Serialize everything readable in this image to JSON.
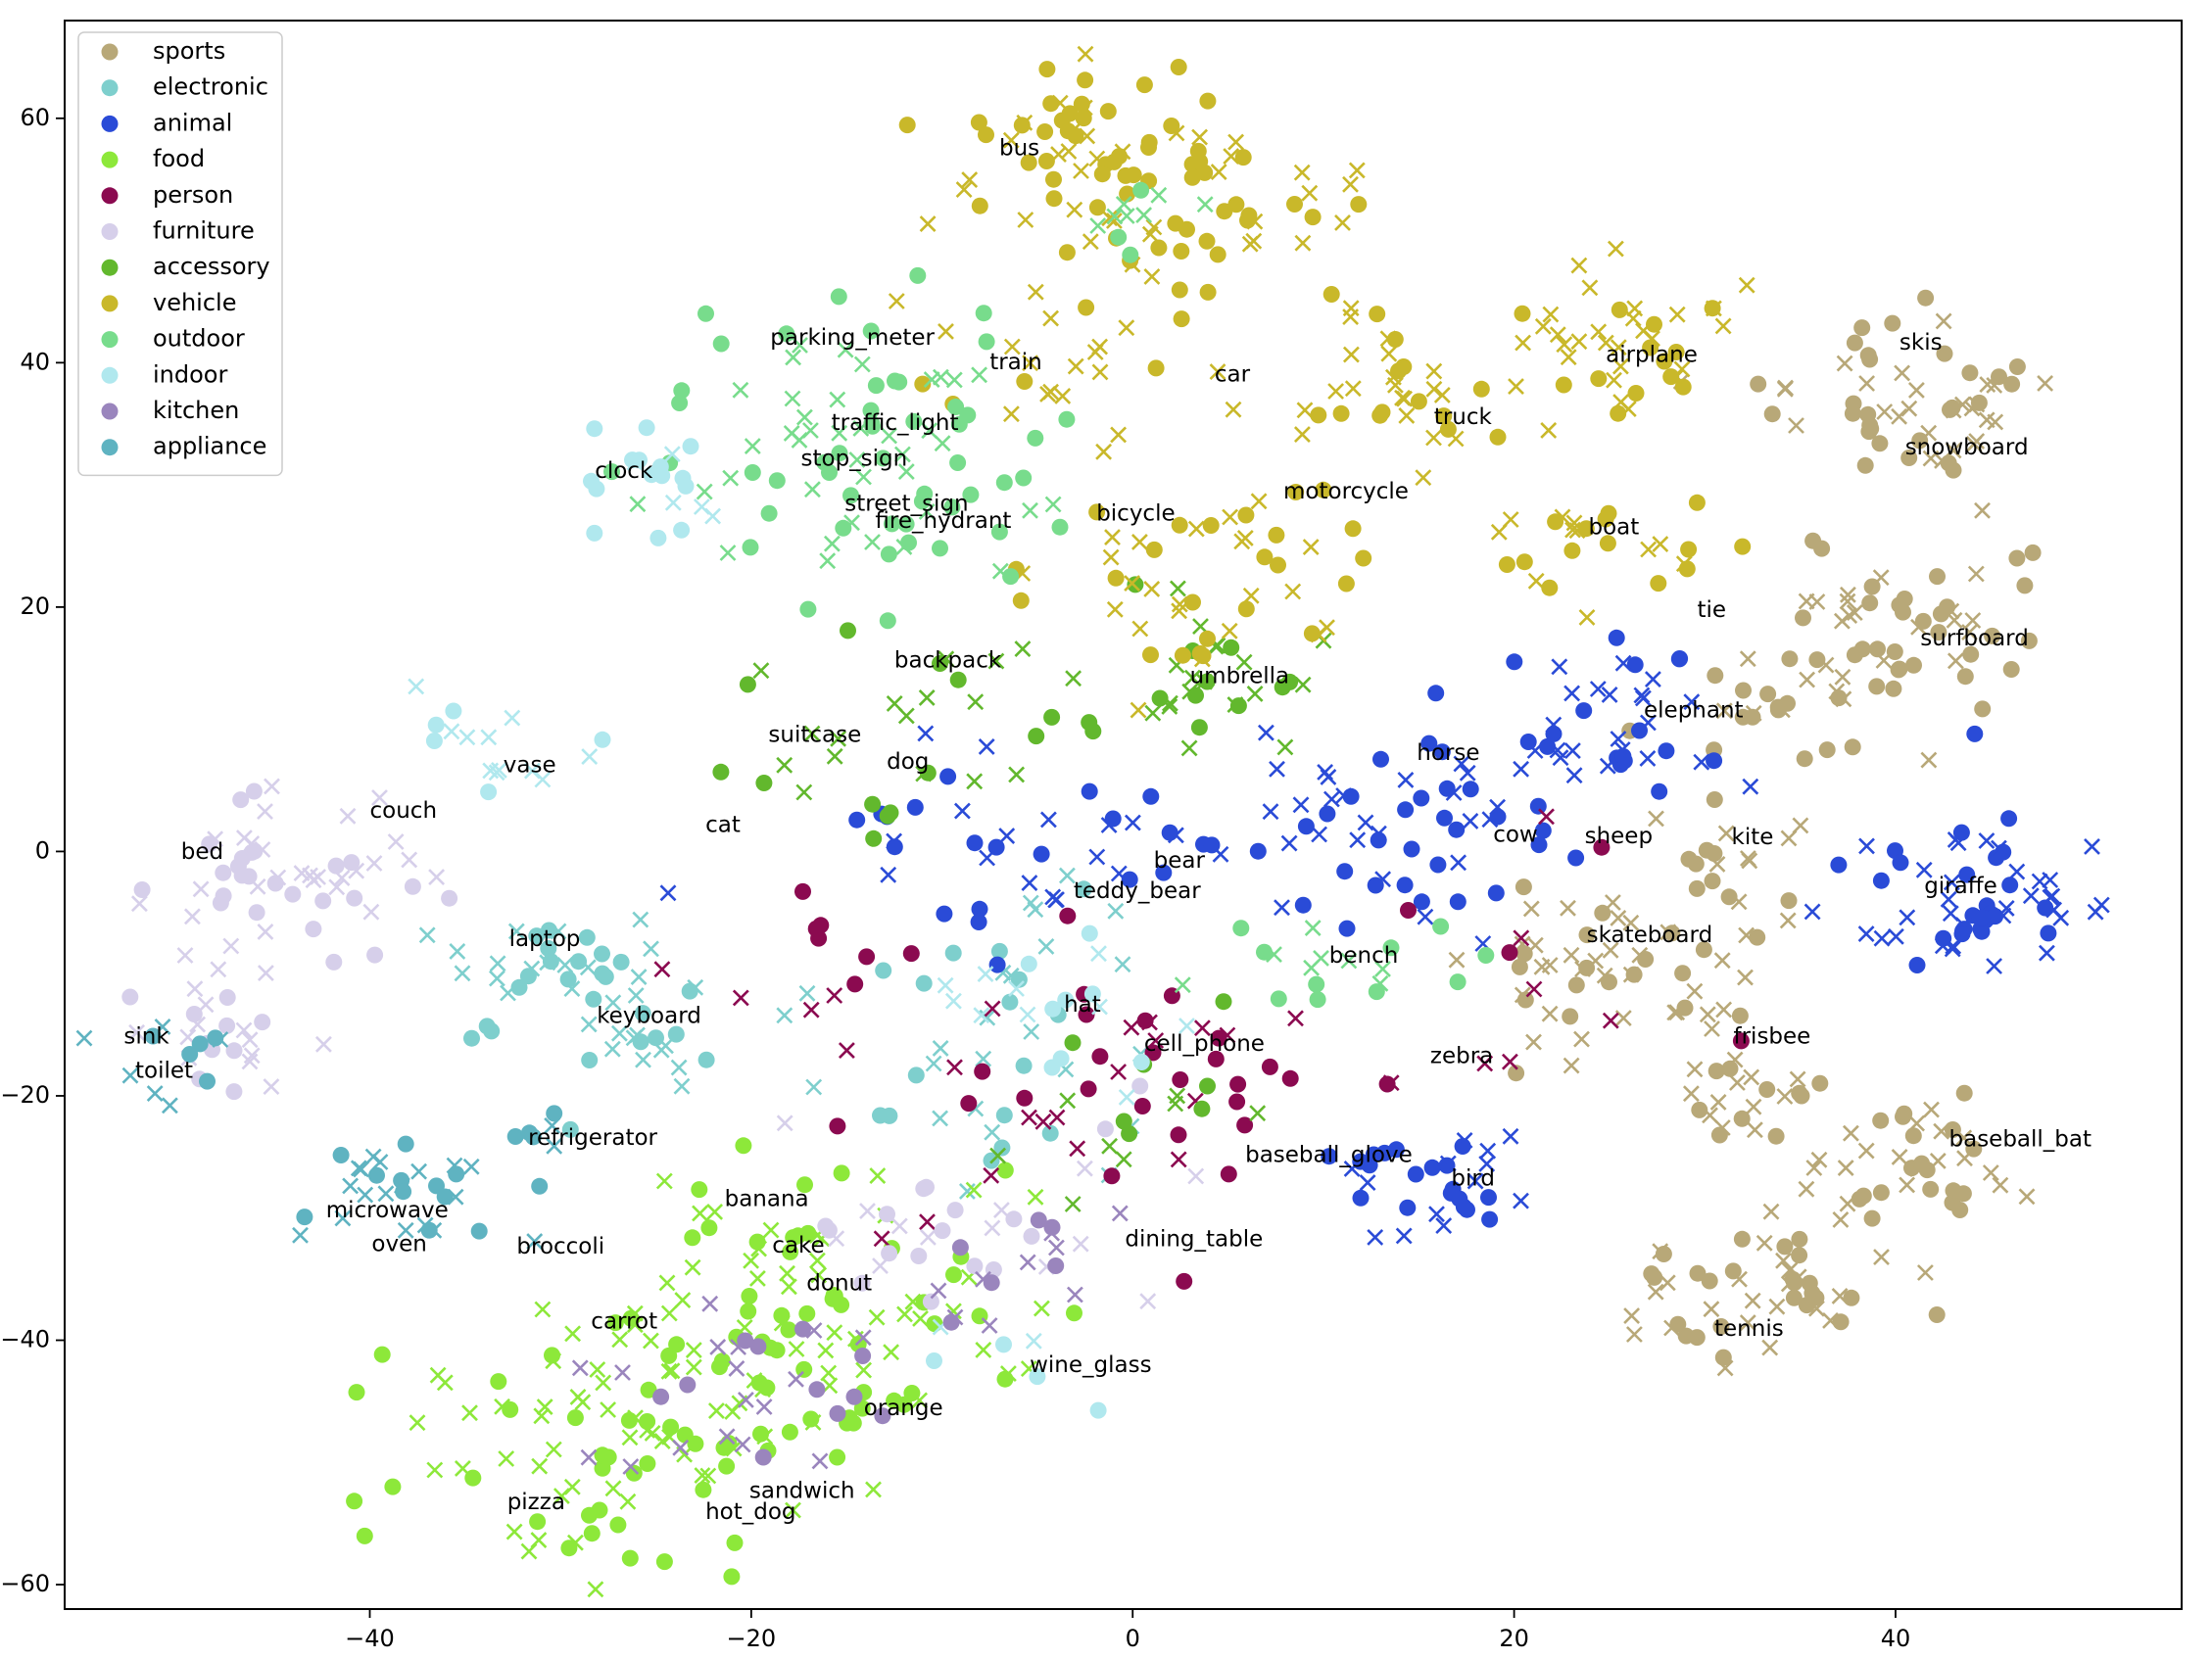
{
  "chart_data": {
    "type": "scatter",
    "title": "",
    "xlabel": "",
    "ylabel": "",
    "xlim": [
      -56,
      55
    ],
    "ylim": [
      -62,
      68
    ],
    "xticks": [
      -40,
      -20,
      0,
      20,
      40
    ],
    "yticks": [
      -60,
      -40,
      -20,
      0,
      20,
      40,
      60
    ],
    "xtick_labels": [
      "−40",
      "−20",
      "0",
      "20",
      "40"
    ],
    "ytick_labels": [
      "−60",
      "−40",
      "−20",
      "0",
      "20",
      "40",
      "60"
    ],
    "grid": false,
    "legend_position": "upper-left",
    "marker_legend": {
      "circle": "dot",
      "x": "cross"
    },
    "series": [
      {
        "name": "sports",
        "color": "#b8a878",
        "clusters": [
          {
            "x": 41,
            "y": 37,
            "spread": 3.5,
            "n": 55
          },
          {
            "x": 40,
            "y": 19,
            "spread": 3.5,
            "n": 50
          },
          {
            "x": 34,
            "y": 12,
            "spread": 3,
            "n": 25
          },
          {
            "x": 32,
            "y": 0,
            "spread": 2,
            "n": 14
          },
          {
            "x": 26,
            "y": -9,
            "spread": 4,
            "n": 55
          },
          {
            "x": 33,
            "y": -20,
            "spread": 2.5,
            "n": 22
          },
          {
            "x": 41,
            "y": -26,
            "spread": 3,
            "n": 38
          },
          {
            "x": 33,
            "y": -36,
            "spread": 3.5,
            "n": 50
          }
        ]
      },
      {
        "name": "electronic",
        "color": "#7ecfcd",
        "clusters": [
          {
            "x": -30,
            "y": -10,
            "spread": 3,
            "n": 38
          },
          {
            "x": -25,
            "y": -16,
            "spread": 2.5,
            "n": 16
          },
          {
            "x": -8,
            "y": -16,
            "spread": 5,
            "n": 30
          },
          {
            "x": -4,
            "y": -6,
            "spread": 3,
            "n": 10
          }
        ]
      },
      {
        "name": "animal",
        "color": "#2a4bd7",
        "clusters": [
          {
            "x": 14,
            "y": 3,
            "spread": 4.5,
            "n": 60
          },
          {
            "x": 26,
            "y": 10,
            "spread": 3,
            "n": 35
          },
          {
            "x": 45,
            "y": -4,
            "spread": 3.5,
            "n": 60
          },
          {
            "x": 16,
            "y": -27,
            "spread": 2.5,
            "n": 32
          },
          {
            "x": -8,
            "y": 1,
            "spread": 5,
            "n": 30
          },
          {
            "x": 2,
            "y": 0,
            "spread": 2,
            "n": 10
          }
        ]
      },
      {
        "name": "food",
        "color": "#8de83a",
        "clusters": [
          {
            "x": -27,
            "y": -48,
            "spread": 6,
            "n": 110
          },
          {
            "x": -17,
            "y": -35,
            "spread": 5,
            "n": 60
          },
          {
            "x": -13,
            "y": -44,
            "spread": 3,
            "n": 20
          }
        ]
      },
      {
        "name": "person",
        "color": "#8b0a50",
        "clusters": [
          {
            "x": 0,
            "y": -18,
            "spread": 6,
            "n": 45
          },
          {
            "x": -18,
            "y": -10,
            "spread": 3,
            "n": 12
          },
          {
            "x": 20,
            "y": -8,
            "spread": 6,
            "n": 10
          }
        ]
      },
      {
        "name": "furniture",
        "color": "#d6cfea",
        "clusters": [
          {
            "x": -44,
            "y": -2,
            "spread": 4,
            "n": 55
          },
          {
            "x": -48,
            "y": -16,
            "spread": 2.5,
            "n": 22
          },
          {
            "x": -8,
            "y": -30,
            "spread": 5,
            "n": 30
          }
        ]
      },
      {
        "name": "accessory",
        "color": "#62b82d",
        "clusters": [
          {
            "x": 3,
            "y": 14,
            "spread": 3,
            "n": 30
          },
          {
            "x": -11,
            "y": 10,
            "spread": 5,
            "n": 30
          },
          {
            "x": 2,
            "y": -20,
            "spread": 3,
            "n": 15
          }
        ]
      },
      {
        "name": "vehicle",
        "color": "#c9b82a",
        "clusters": [
          {
            "x": -3,
            "y": 57,
            "spread": 4,
            "n": 60
          },
          {
            "x": 5,
            "y": 52,
            "spread": 4,
            "n": 40
          },
          {
            "x": 25,
            "y": 42,
            "spread": 3,
            "n": 40
          },
          {
            "x": 13,
            "y": 37,
            "spread": 4,
            "n": 35
          },
          {
            "x": 4,
            "y": 25,
            "spread": 5,
            "n": 50
          },
          {
            "x": 24,
            "y": 24,
            "spread": 3,
            "n": 25
          },
          {
            "x": -5,
            "y": 40,
            "spread": 3.5,
            "n": 20
          }
        ]
      },
      {
        "name": "outdoor",
        "color": "#78dc8c",
        "clusters": [
          {
            "x": -15,
            "y": 33,
            "spread": 6,
            "n": 90
          },
          {
            "x": 0,
            "y": 52,
            "spread": 2,
            "n": 10
          },
          {
            "x": 10,
            "y": -9,
            "spread": 3,
            "n": 18
          }
        ]
      },
      {
        "name": "indoor",
        "color": "#b0e8ee",
        "clusters": [
          {
            "x": -26,
            "y": 31,
            "spread": 2.5,
            "n": 20
          },
          {
            "x": -33,
            "y": 8,
            "spread": 2.5,
            "n": 16
          },
          {
            "x": -4,
            "y": -12,
            "spread": 4,
            "n": 18
          },
          {
            "x": -7,
            "y": -42,
            "spread": 2,
            "n": 6
          }
        ]
      },
      {
        "name": "kitchen",
        "color": "#9a85bd",
        "clusters": [
          {
            "x": -20,
            "y": -45,
            "spread": 5,
            "n": 28
          },
          {
            "x": -7,
            "y": -34,
            "spread": 3,
            "n": 15
          }
        ]
      },
      {
        "name": "appliance",
        "color": "#5fb3c1",
        "clusters": [
          {
            "x": -38,
            "y": -29,
            "spread": 2.5,
            "n": 30
          },
          {
            "x": -50,
            "y": -16,
            "spread": 2,
            "n": 12
          },
          {
            "x": -31,
            "y": -24,
            "spread": 1.5,
            "n": 6
          }
        ]
      }
    ],
    "annotations": [
      {
        "text": "bus",
        "x": -7,
        "y": 57.5
      },
      {
        "text": "parking_meter",
        "x": -19,
        "y": 42
      },
      {
        "text": "train",
        "x": -7.5,
        "y": 40
      },
      {
        "text": "car",
        "x": 4.3,
        "y": 39
      },
      {
        "text": "airplane",
        "x": 24.8,
        "y": 40.6
      },
      {
        "text": "skis",
        "x": 40.2,
        "y": 41.6
      },
      {
        "text": "traffic_light",
        "x": -15.8,
        "y": 35
      },
      {
        "text": "truck",
        "x": 15.8,
        "y": 35.5
      },
      {
        "text": "stop_sign",
        "x": -17.4,
        "y": 32.1
      },
      {
        "text": "snowboard",
        "x": 40.5,
        "y": 33
      },
      {
        "text": "clock",
        "x": -28.2,
        "y": 31.1
      },
      {
        "text": "motorcycle",
        "x": 7.9,
        "y": 29.4
      },
      {
        "text": "street_sign",
        "x": -15.1,
        "y": 28.4
      },
      {
        "text": "fire_hydrant",
        "x": -13.5,
        "y": 27
      },
      {
        "text": "bicycle",
        "x": -1.9,
        "y": 27.6
      },
      {
        "text": "boat",
        "x": 23.9,
        "y": 26.5
      },
      {
        "text": "tie",
        "x": 29.6,
        "y": 19.7
      },
      {
        "text": "backpack",
        "x": -12.5,
        "y": 15.6
      },
      {
        "text": "surfboard",
        "x": 41.3,
        "y": 17.4
      },
      {
        "text": "umbrella",
        "x": 3,
        "y": 14.3
      },
      {
        "text": "elephant",
        "x": 26.8,
        "y": 11.5
      },
      {
        "text": "suitcase",
        "x": -19.1,
        "y": 9.5
      },
      {
        "text": "vase",
        "x": -33,
        "y": 7
      },
      {
        "text": "dog",
        "x": -12.9,
        "y": 7.3
      },
      {
        "text": "horse",
        "x": 14.9,
        "y": 8
      },
      {
        "text": "couch",
        "x": -40,
        "y": 3.3
      },
      {
        "text": "cat",
        "x": -22.4,
        "y": 2.1
      },
      {
        "text": "cow",
        "x": 18.9,
        "y": 1.3
      },
      {
        "text": "sheep",
        "x": 23.7,
        "y": 1.2
      },
      {
        "text": "kite",
        "x": 31.4,
        "y": 1.1
      },
      {
        "text": "bed",
        "x": -49.9,
        "y": -0.1
      },
      {
        "text": "bear",
        "x": 1.1,
        "y": -0.8
      },
      {
        "text": "giraffe",
        "x": 41.5,
        "y": -2.9
      },
      {
        "text": "teddy_bear",
        "x": -3.1,
        "y": -3.3
      },
      {
        "text": "laptop",
        "x": -32.7,
        "y": -7.2
      },
      {
        "text": "skateboard",
        "x": 23.8,
        "y": -6.9
      },
      {
        "text": "bench",
        "x": 10.3,
        "y": -8.6
      },
      {
        "text": "hat",
        "x": -3.6,
        "y": -12.6
      },
      {
        "text": "keyboard",
        "x": -28.1,
        "y": -13.5
      },
      {
        "text": "sink",
        "x": -52.9,
        "y": -15.2
      },
      {
        "text": "frisbee",
        "x": 31.5,
        "y": -15.2
      },
      {
        "text": "cell_phone",
        "x": 0.6,
        "y": -15.8
      },
      {
        "text": "toilet",
        "x": -52.3,
        "y": -18
      },
      {
        "text": "zebra",
        "x": 15.6,
        "y": -16.8
      },
      {
        "text": "refrigerator",
        "x": -31.7,
        "y": -23.5
      },
      {
        "text": "baseball_bat",
        "x": 42.8,
        "y": -23.6
      },
      {
        "text": "baseball_glove",
        "x": 5.9,
        "y": -24.9
      },
      {
        "text": "bird",
        "x": 16.7,
        "y": -26.8
      },
      {
        "text": "banana",
        "x": -21.4,
        "y": -28.5
      },
      {
        "text": "microwave",
        "x": -42.3,
        "y": -29.4
      },
      {
        "text": "dining_table",
        "x": -0.4,
        "y": -31.8
      },
      {
        "text": "oven",
        "x": -39.9,
        "y": -32.2
      },
      {
        "text": "broccoli",
        "x": -32.3,
        "y": -32.4
      },
      {
        "text": "cake",
        "x": -18.9,
        "y": -32.3
      },
      {
        "text": "donut",
        "x": -17.1,
        "y": -35.4
      },
      {
        "text": "tennis",
        "x": 30.5,
        "y": -39.1
      },
      {
        "text": "carrot",
        "x": -28.4,
        "y": -38.5
      },
      {
        "text": "wine_glass",
        "x": -5.4,
        "y": -42.1
      },
      {
        "text": "orange",
        "x": -14.1,
        "y": -45.6
      },
      {
        "text": "sandwich",
        "x": -20.1,
        "y": -52.4
      },
      {
        "text": "pizza",
        "x": -32.8,
        "y": -53.3
      },
      {
        "text": "hot_dog",
        "x": -22.4,
        "y": -54.1
      }
    ]
  }
}
